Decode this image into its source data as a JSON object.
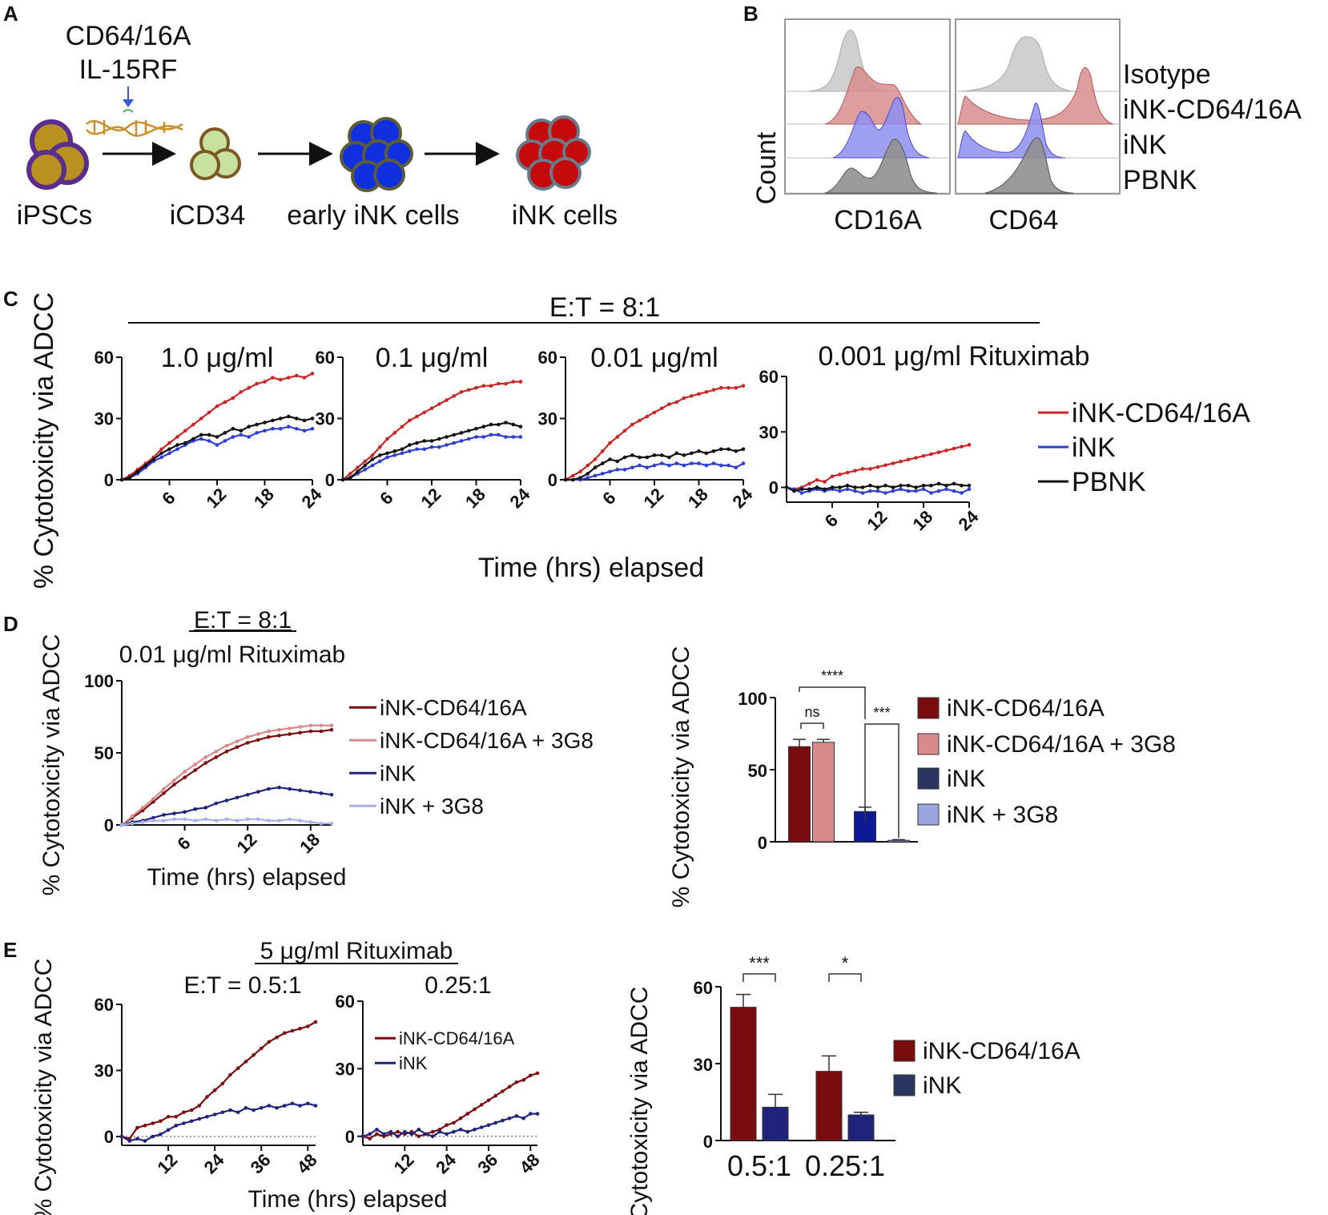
{
  "colors": {
    "ink_cd64": "#c62828",
    "ink": "#2f3fcf",
    "pbnk": "#111111",
    "dark_red": "#7a0c10",
    "pink": "#d98a8a",
    "navy": "#1f237a",
    "light_blue": "#a7b2ec",
    "bar_navy": "#0d1a96",
    "bar_light": "#9aa6e0"
  },
  "panelA": {
    "label": "A",
    "edit_line1": "CD64/16A",
    "edit_line2": "IL-15RF",
    "stages": [
      "iPSCs",
      "iCD34",
      "early iNK cells",
      "iNK cells"
    ]
  },
  "panelB": {
    "label": "B",
    "y_label": "Count",
    "x_labels": [
      "CD16A",
      "CD64"
    ],
    "rows": [
      "Isotype",
      "iNK-CD64/16A",
      "iNK",
      "PBNK"
    ]
  },
  "panelC": {
    "label": "C",
    "header": "E:T = 8:1",
    "x_title": "Time (hrs) elapsed"
  },
  "panelD": {
    "label": "D",
    "header": "E:T = 8:1",
    "subheader": "0.01 μg/ml Rituximab",
    "x_title": "Time (hrs) elapsed",
    "sig": [
      "****",
      "ns",
      "***"
    ]
  },
  "panelE": {
    "label": "E",
    "header": "5 μg/ml Rituximab",
    "x_title": "Time (hrs) elapsed",
    "sig": [
      "***",
      "*"
    ]
  },
  "chart_data": [
    {
      "id": "C1",
      "type": "line",
      "title": "1.0 μg/ml",
      "ylabel": "% Cytotoxicity via ADCC",
      "xlabel": "Time (hrs) elapsed",
      "ylim": [
        0,
        60
      ],
      "xlim": [
        0,
        24
      ],
      "yticks": [
        0,
        30,
        60
      ],
      "xticks": [
        6,
        12,
        18,
        24
      ],
      "x": [
        0,
        1,
        2,
        3,
        4,
        5,
        6,
        7,
        8,
        9,
        10,
        11,
        12,
        13,
        14,
        15,
        16,
        17,
        18,
        19,
        20,
        21,
        22,
        23,
        24
      ],
      "series": [
        {
          "name": "iNK-CD64/16A",
          "color_key": "ink_cd64",
          "values": [
            0,
            2,
            5,
            8,
            11,
            15,
            18,
            21,
            24,
            27,
            30,
            33,
            36,
            38,
            40,
            43,
            45,
            47,
            48,
            50,
            49,
            50,
            51,
            50,
            52
          ]
        },
        {
          "name": "iNK",
          "color_key": "ink",
          "values": [
            0,
            1,
            3,
            6,
            9,
            11,
            13,
            15,
            17,
            19,
            20,
            19,
            17,
            19,
            21,
            22,
            21,
            23,
            24,
            25,
            25,
            26,
            25,
            24,
            25
          ]
        },
        {
          "name": "PBNK",
          "color_key": "pbnk",
          "values": [
            0,
            1,
            4,
            7,
            10,
            13,
            15,
            17,
            18,
            20,
            22,
            22,
            21,
            23,
            25,
            24,
            26,
            27,
            28,
            29,
            30,
            31,
            30,
            29,
            30
          ]
        }
      ]
    },
    {
      "id": "C2",
      "type": "line",
      "title": "0.1 μg/ml",
      "ylim": [
        0,
        60
      ],
      "xlim": [
        0,
        24
      ],
      "yticks": [
        0,
        30,
        60
      ],
      "xticks": [
        6,
        12,
        18,
        24
      ],
      "x": [
        0,
        1,
        2,
        3,
        4,
        5,
        6,
        7,
        8,
        9,
        10,
        11,
        12,
        13,
        14,
        15,
        16,
        17,
        18,
        19,
        20,
        21,
        22,
        23,
        24
      ],
      "series": [
        {
          "name": "iNK-CD64/16A",
          "color_key": "ink_cd64",
          "values": [
            0,
            3,
            6,
            9,
            12,
            16,
            20,
            23,
            26,
            29,
            31,
            33,
            35,
            37,
            39,
            41,
            43,
            44,
            45,
            46,
            46,
            47,
            47,
            48,
            48
          ]
        },
        {
          "name": "iNK",
          "color_key": "ink",
          "values": [
            0,
            1,
            3,
            5,
            7,
            9,
            11,
            12,
            13,
            14,
            15,
            15,
            16,
            16,
            17,
            18,
            19,
            20,
            21,
            21,
            22,
            22,
            21,
            21,
            21
          ]
        },
        {
          "name": "PBNK",
          "color_key": "pbnk",
          "values": [
            0,
            1,
            4,
            7,
            10,
            12,
            13,
            14,
            15,
            17,
            18,
            19,
            19,
            20,
            21,
            22,
            23,
            24,
            25,
            26,
            27,
            27,
            28,
            27,
            26
          ]
        }
      ]
    },
    {
      "id": "C3",
      "type": "line",
      "title": "0.01 μg/ml",
      "ylim": [
        0,
        60
      ],
      "xlim": [
        0,
        24
      ],
      "yticks": [
        0,
        30,
        60
      ],
      "xticks": [
        6,
        12,
        18,
        24
      ],
      "x": [
        0,
        1,
        2,
        3,
        4,
        5,
        6,
        7,
        8,
        9,
        10,
        11,
        12,
        13,
        14,
        15,
        16,
        17,
        18,
        19,
        20,
        21,
        22,
        23,
        24
      ],
      "series": [
        {
          "name": "iNK-CD64/16A",
          "color_key": "ink_cd64",
          "values": [
            0,
            2,
            4,
            7,
            10,
            14,
            18,
            21,
            24,
            27,
            29,
            31,
            33,
            35,
            37,
            38,
            40,
            41,
            42,
            43,
            44,
            45,
            45,
            45,
            46
          ]
        },
        {
          "name": "iNK",
          "color_key": "ink",
          "values": [
            0,
            0,
            0,
            1,
            2,
            3,
            4,
            5,
            5,
            6,
            7,
            6,
            7,
            8,
            7,
            8,
            7,
            8,
            8,
            7,
            8,
            7,
            7,
            6,
            8
          ]
        },
        {
          "name": "PBNK",
          "color_key": "pbnk",
          "values": [
            0,
            0,
            1,
            3,
            6,
            8,
            10,
            9,
            11,
            12,
            11,
            11,
            12,
            12,
            11,
            13,
            12,
            13,
            14,
            13,
            14,
            15,
            15,
            14,
            15
          ]
        }
      ]
    },
    {
      "id": "C4",
      "type": "line",
      "title": "0.001 μg/ml Rituximab",
      "ylim": [
        -8,
        60
      ],
      "xlim": [
        0,
        24
      ],
      "yticks": [
        0,
        30,
        60
      ],
      "xticks": [
        6,
        12,
        18,
        24
      ],
      "x": [
        0,
        1,
        2,
        3,
        4,
        5,
        6,
        7,
        8,
        9,
        10,
        11,
        12,
        13,
        14,
        15,
        16,
        17,
        18,
        19,
        20,
        21,
        22,
        23,
        24
      ],
      "series": [
        {
          "name": "iNK-CD64/16A",
          "color_key": "ink_cd64",
          "values": [
            0,
            -1,
            0,
            2,
            4,
            3,
            6,
            7,
            8,
            9,
            10,
            10,
            11,
            12,
            13,
            14,
            15,
            16,
            17,
            18,
            19,
            20,
            21,
            22,
            23
          ]
        },
        {
          "name": "iNK",
          "color_key": "ink",
          "values": [
            0,
            -1,
            -3,
            -2,
            -1,
            -2,
            -1,
            -2,
            -1,
            -2,
            -3,
            -2,
            -2,
            -3,
            -2,
            -1,
            -2,
            -2,
            -1,
            -3,
            -2,
            -1,
            -2,
            -3,
            -1
          ]
        },
        {
          "name": "PBNK",
          "color_key": "pbnk",
          "values": [
            0,
            -2,
            -1,
            -1,
            0,
            -1,
            0,
            0,
            1,
            0,
            0,
            1,
            0,
            1,
            0,
            1,
            1,
            0,
            1,
            1,
            2,
            1,
            2,
            1,
            1
          ]
        }
      ],
      "legend": [
        "iNK-CD64/16A",
        "iNK",
        "PBNK"
      ]
    },
    {
      "id": "D1",
      "type": "line",
      "title": "0.01 μg/ml Rituximab",
      "ylabel": "% Cytotoxicity via ADCC",
      "xlabel": "Time (hrs) elapsed",
      "ylim": [
        0,
        100
      ],
      "xlim": [
        0,
        20
      ],
      "yticks": [
        0,
        50,
        100
      ],
      "xticks": [
        6,
        12,
        18
      ],
      "x": [
        0,
        1,
        2,
        3,
        4,
        5,
        6,
        7,
        8,
        9,
        10,
        11,
        12,
        13,
        14,
        15,
        16,
        17,
        18,
        19,
        20
      ],
      "series": [
        {
          "name": "iNK-CD64/16A",
          "color_key": "dark_red",
          "values": [
            0,
            5,
            10,
            16,
            22,
            28,
            33,
            38,
            43,
            47,
            51,
            54,
            57,
            59,
            61,
            62,
            63,
            64,
            65,
            65,
            66
          ]
        },
        {
          "name": "iNK-CD64/16A + 3G8",
          "color_key": "pink",
          "values": [
            0,
            6,
            12,
            18,
            25,
            31,
            37,
            42,
            47,
            51,
            55,
            58,
            61,
            63,
            65,
            66,
            67,
            68,
            69,
            69,
            69
          ]
        },
        {
          "name": "iNK",
          "color_key": "navy",
          "values": [
            0,
            2,
            3,
            5,
            7,
            8,
            9,
            11,
            12,
            15,
            17,
            19,
            21,
            23,
            25,
            26,
            25,
            24,
            23,
            22,
            21
          ]
        },
        {
          "name": "iNK + 3G8",
          "color_key": "light_blue",
          "values": [
            0,
            1,
            2,
            3,
            3,
            4,
            4,
            3,
            4,
            3,
            4,
            3,
            4,
            4,
            3,
            3,
            4,
            3,
            2,
            1,
            1
          ]
        }
      ],
      "legend": [
        "iNK-CD64/16A",
        "iNK-CD64/16A + 3G8",
        "iNK",
        "iNK + 3G8"
      ]
    },
    {
      "id": "D2",
      "type": "bar",
      "ylabel": "% Cytotoxicity via ADCC",
      "ylim": [
        0,
        100
      ],
      "yticks": [
        0,
        50,
        100
      ],
      "categories": [
        "iNK-CD64/16A",
        "iNK-CD64/16A + 3G8",
        "iNK",
        "iNK + 3G8"
      ],
      "values": [
        66,
        69,
        21,
        1
      ],
      "errors": [
        5,
        2,
        3,
        0.5
      ]
    },
    {
      "id": "E1",
      "type": "line",
      "title": "E:T = 0.5:1",
      "ylabel": "% Cytotoxicity via ADCC",
      "xlabel": "Time (hrs) elapsed",
      "ylim": [
        -4,
        60
      ],
      "xlim": [
        0,
        50
      ],
      "yticks": [
        0,
        30,
        60
      ],
      "xticks": [
        12,
        24,
        36,
        48
      ],
      "x": [
        0,
        2,
        4,
        6,
        8,
        10,
        12,
        14,
        16,
        18,
        20,
        22,
        24,
        26,
        28,
        30,
        32,
        34,
        36,
        38,
        40,
        42,
        44,
        46,
        48,
        50
      ],
      "series": [
        {
          "name": "iNK-CD64/16A",
          "color_key": "dark_red",
          "values": [
            0,
            -1,
            4,
            5,
            6,
            7,
            9,
            9,
            11,
            12,
            14,
            18,
            21,
            24,
            28,
            31,
            34,
            37,
            40,
            43,
            45,
            47,
            48,
            49,
            50,
            52
          ]
        },
        {
          "name": "iNK",
          "color_key": "navy",
          "values": [
            0,
            -2,
            -1,
            -2,
            0,
            1,
            3,
            5,
            6,
            7,
            8,
            9,
            10,
            11,
            12,
            11,
            13,
            12,
            13,
            14,
            13,
            14,
            15,
            14,
            15,
            14
          ]
        }
      ]
    },
    {
      "id": "E2",
      "type": "line",
      "title": "0.25:1",
      "ylim": [
        -4,
        60
      ],
      "xlim": [
        0,
        50
      ],
      "yticks": [
        0,
        30,
        60
      ],
      "xticks": [
        12,
        24,
        36,
        48
      ],
      "x": [
        0,
        2,
        4,
        6,
        8,
        10,
        12,
        14,
        16,
        18,
        20,
        22,
        24,
        26,
        28,
        30,
        32,
        34,
        36,
        38,
        40,
        42,
        44,
        46,
        48,
        50
      ],
      "series": [
        {
          "name": "iNK-CD64/16A",
          "color_key": "dark_red",
          "values": [
            0,
            -1,
            1,
            0,
            1,
            2,
            1,
            2,
            0,
            1,
            2,
            3,
            5,
            6,
            8,
            10,
            12,
            14,
            16,
            18,
            20,
            22,
            24,
            25,
            27,
            28
          ]
        },
        {
          "name": "iNK",
          "color_key": "navy",
          "values": [
            0,
            1,
            3,
            1,
            2,
            0,
            2,
            1,
            3,
            1,
            0,
            2,
            1,
            2,
            3,
            2,
            3,
            4,
            5,
            6,
            7,
            8,
            9,
            8,
            10,
            10
          ]
        }
      ],
      "legend": [
        "iNK-CD64/16A",
        "iNK"
      ]
    },
    {
      "id": "E3",
      "type": "bar",
      "ylabel": "% Cytotoxicity via ADCC",
      "ylim": [
        0,
        60
      ],
      "yticks": [
        0,
        30,
        60
      ],
      "categories": [
        "0.5:1",
        "0.25:1"
      ],
      "series": [
        {
          "name": "iNK-CD64/16A",
          "color_key": "dark_red",
          "values": [
            52,
            27
          ],
          "errors": [
            5,
            6
          ]
        },
        {
          "name": "iNK",
          "color_key": "navy",
          "values": [
            13,
            10
          ],
          "errors": [
            5,
            1
          ]
        }
      ],
      "legend": [
        "iNK-CD64/16A",
        "iNK"
      ]
    }
  ]
}
